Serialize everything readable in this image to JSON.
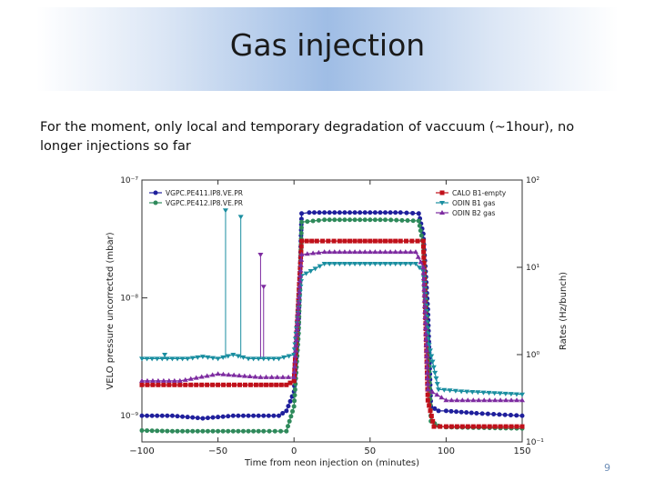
{
  "slide": {
    "title": "Gas injection",
    "body": "For the moment, only local and temporary degradation of vaccuum (~1hour), no longer injections so far",
    "page_number": "9"
  },
  "chart_data": {
    "type": "scatter",
    "title": "",
    "xlabel": "Time from neon injection on (minutes)",
    "ylabel_left": "VELO pressure uncorrected (mbar)",
    "ylabel_right": "Rates (Hz/bunch)",
    "xlim": [
      -100,
      150
    ],
    "ylim_left": [
      6e-10,
      1e-07
    ],
    "ylim_right": [
      0.1,
      100
    ],
    "log_y": true,
    "x_ticks": [
      -100,
      -50,
      0,
      50,
      100,
      150
    ],
    "x_tick_labels": [
      "−100",
      "−50",
      "0",
      "50",
      "100",
      "150"
    ],
    "y_left_ticks": [
      1e-09,
      1e-08,
      1e-07
    ],
    "y_left_tick_labels": [
      "10⁻⁹",
      "10⁻⁸",
      "10⁻⁷"
    ],
    "y_right_ticks": [
      0.1,
      1,
      10,
      100
    ],
    "y_right_tick_labels": [
      "10⁻¹",
      "10⁰",
      "10¹",
      "10²"
    ],
    "grid": false,
    "legend_left": "top-left",
    "legend_right": "top-right",
    "series": [
      {
        "name": "VGPC.PE411.IP8.VE.PR",
        "axis": "left",
        "color": "#1f1f9c",
        "marker": "circle",
        "points": [
          [
            -100,
            1e-09
          ],
          [
            -80,
            1e-09
          ],
          [
            -60,
            9.5e-10
          ],
          [
            -40,
            1e-09
          ],
          [
            -20,
            1e-09
          ],
          [
            -10,
            1e-09
          ],
          [
            -5,
            1.1e-09
          ],
          [
            0,
            1.6e-09
          ],
          [
            3,
            6e-09
          ],
          [
            5,
            5.2e-08
          ],
          [
            10,
            5.3e-08
          ],
          [
            30,
            5.3e-08
          ],
          [
            50,
            5.3e-08
          ],
          [
            70,
            5.3e-08
          ],
          [
            82,
            5.2e-08
          ],
          [
            85,
            3.5e-08
          ],
          [
            88,
            8e-09
          ],
          [
            90,
            1.2e-09
          ],
          [
            95,
            1.1e-09
          ],
          [
            100,
            1.1e-09
          ],
          [
            120,
            1.05e-09
          ],
          [
            150,
            1e-09
          ]
        ]
      },
      {
        "name": "VGPC.PE412.IP8.VE.PR",
        "axis": "left",
        "color": "#2f8a5b",
        "marker": "circle",
        "points": [
          [
            -100,
            7.5e-10
          ],
          [
            -80,
            7.4e-10
          ],
          [
            -60,
            7.4e-10
          ],
          [
            -40,
            7.4e-10
          ],
          [
            -20,
            7.4e-10
          ],
          [
            -5,
            7.4e-10
          ],
          [
            0,
            1.2e-09
          ],
          [
            3,
            5e-09
          ],
          [
            5,
            4.4e-08
          ],
          [
            20,
            4.6e-08
          ],
          [
            40,
            4.6e-08
          ],
          [
            60,
            4.6e-08
          ],
          [
            82,
            4.5e-08
          ],
          [
            85,
            2.8e-08
          ],
          [
            88,
            5e-09
          ],
          [
            90,
            9e-10
          ],
          [
            95,
            8.2e-10
          ],
          [
            100,
            8e-10
          ],
          [
            150,
            7.8e-10
          ]
        ]
      },
      {
        "name": "CALO B1-empty",
        "axis": "right",
        "color": "#c0101a",
        "marker": "square",
        "points": [
          [
            -100,
            0.45
          ],
          [
            -75,
            0.45
          ],
          [
            -50,
            0.45
          ],
          [
            -25,
            0.45
          ],
          [
            -5,
            0.45
          ],
          [
            0,
            0.5
          ],
          [
            5,
            20
          ],
          [
            15,
            20
          ],
          [
            30,
            20
          ],
          [
            50,
            20
          ],
          [
            70,
            20
          ],
          [
            85,
            20
          ],
          [
            88,
            0.3
          ],
          [
            92,
            0.15
          ],
          [
            100,
            0.15
          ],
          [
            150,
            0.15
          ]
        ]
      },
      {
        "name": "ODIN B1 gas",
        "axis": "right",
        "color": "#1a8ea0",
        "marker": "triangle-down",
        "points": [
          [
            -100,
            0.9
          ],
          [
            -90,
            0.9
          ],
          [
            -80,
            0.9
          ],
          [
            -70,
            0.9
          ],
          [
            -60,
            0.95
          ],
          [
            -50,
            0.9
          ],
          [
            -40,
            1.0
          ],
          [
            -30,
            0.9
          ],
          [
            -20,
            0.9
          ],
          [
            -10,
            0.9
          ],
          [
            0,
            1.0
          ],
          [
            5,
            8
          ],
          [
            20,
            11
          ],
          [
            40,
            11
          ],
          [
            60,
            11
          ],
          [
            80,
            11
          ],
          [
            85,
            9
          ],
          [
            88,
            1.5
          ],
          [
            95,
            0.4
          ],
          [
            110,
            0.38
          ],
          [
            150,
            0.35
          ]
        ]
      },
      {
        "name": "ODIN B2 gas",
        "axis": "right",
        "color": "#7d2ba0",
        "marker": "triangle-up",
        "points": [
          [
            -100,
            0.5
          ],
          [
            -75,
            0.5
          ],
          [
            -50,
            0.6
          ],
          [
            -22,
            0.55
          ],
          [
            0,
            0.55
          ],
          [
            5,
            14
          ],
          [
            20,
            15
          ],
          [
            40,
            15
          ],
          [
            60,
            15
          ],
          [
            80,
            15
          ],
          [
            85,
            10
          ],
          [
            88,
            0.4
          ],
          [
            100,
            0.3
          ],
          [
            150,
            0.3
          ]
        ]
      }
    ],
    "vertical_spikes": [
      {
        "series": "ODIN B1 gas",
        "x": -85,
        "y": 1.0
      },
      {
        "series": "ODIN B1 gas",
        "x": -45,
        "y": 45
      },
      {
        "series": "ODIN B1 gas",
        "x": -35,
        "y": 38
      },
      {
        "series": "ODIN B2 gas",
        "x": -22,
        "y": 14
      },
      {
        "series": "ODIN B2 gas",
        "x": -20,
        "y": 6
      }
    ]
  }
}
